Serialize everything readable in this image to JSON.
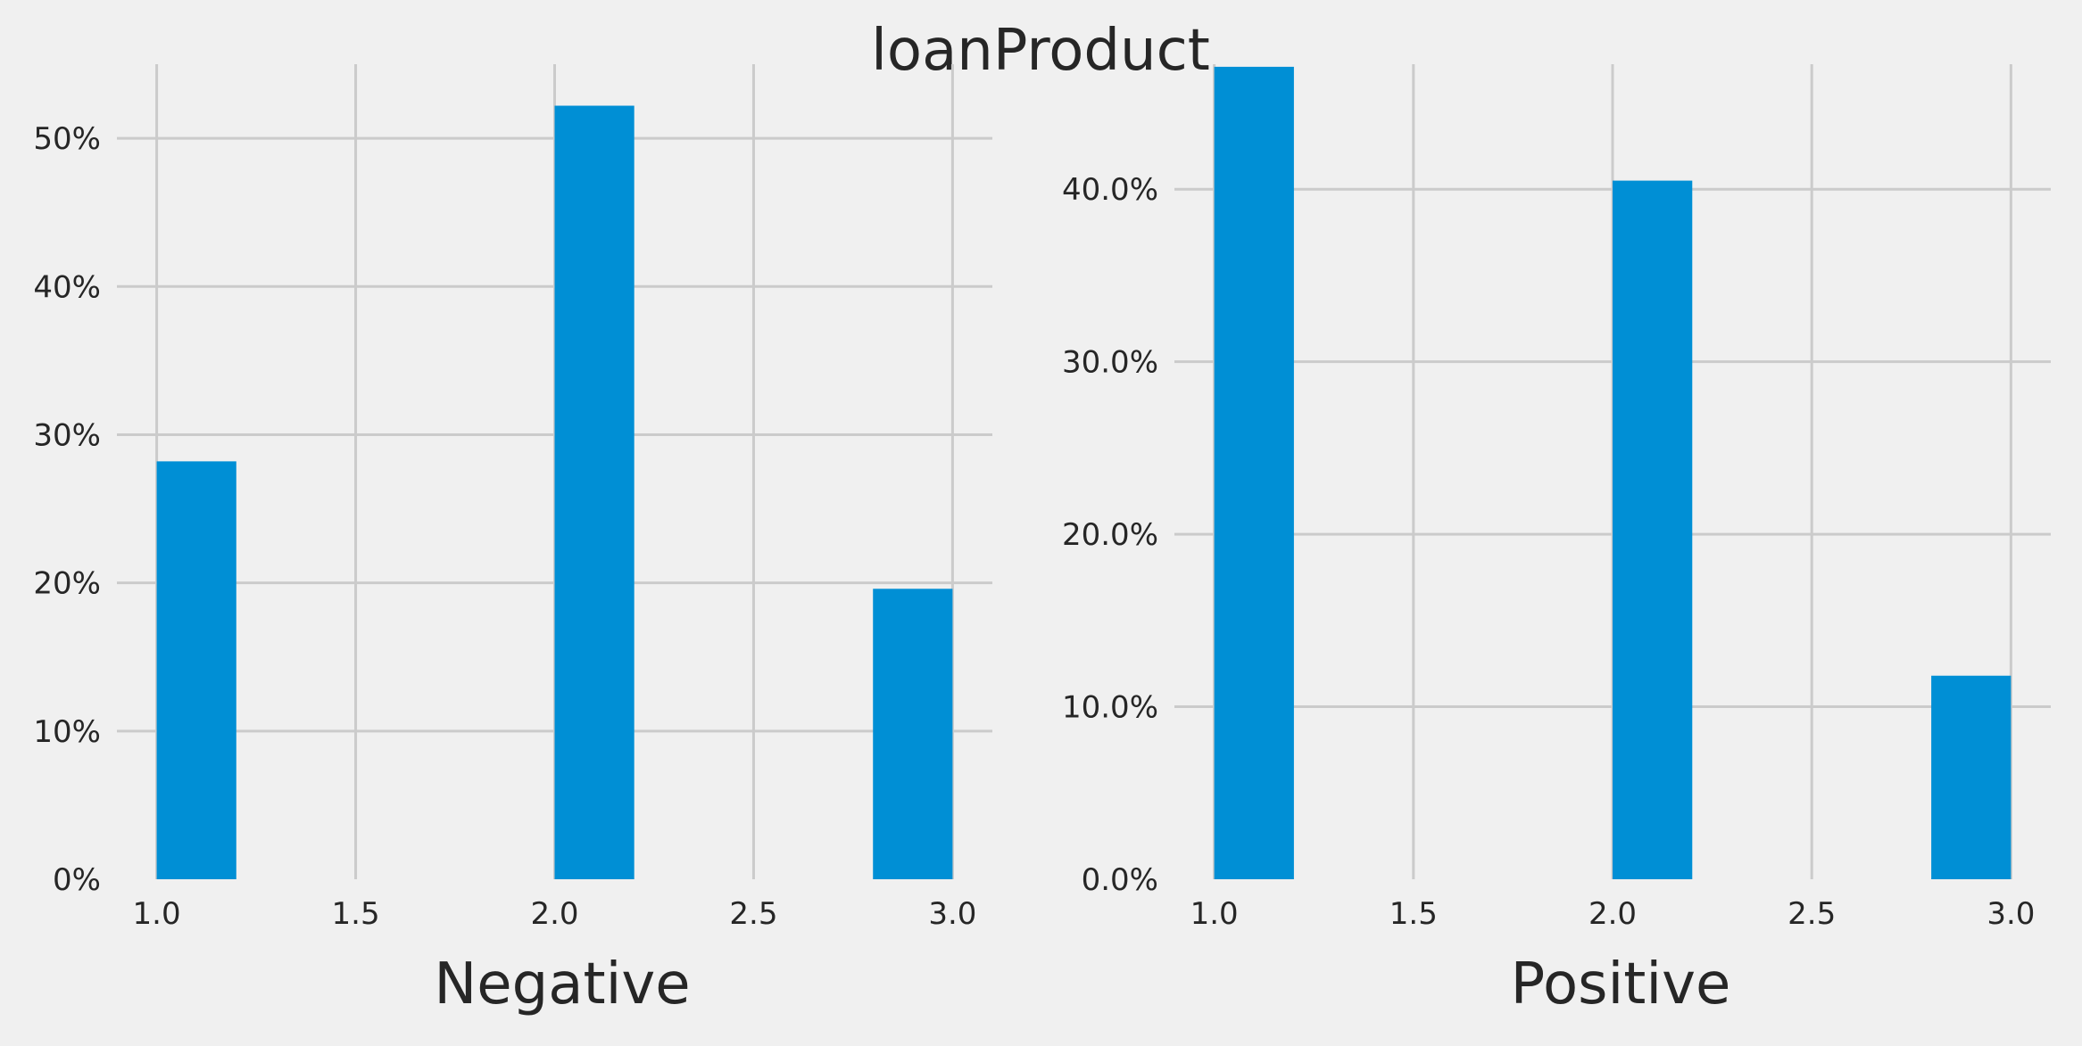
{
  "figure_title": "loanProduct",
  "colors": {
    "bar": "#008fd5",
    "background": "#f0f0f0",
    "grid": "#cbcbcb",
    "text": "#262626"
  },
  "chart_data": [
    {
      "type": "bar",
      "title": "",
      "xlabel": "Negative",
      "ylabel": "",
      "xlim": [
        0.9,
        3.1
      ],
      "ylim": [
        0,
        0.55
      ],
      "xticks": [
        1.0,
        1.5,
        2.0,
        2.5,
        3.0
      ],
      "xtick_labels": [
        "1.0",
        "1.5",
        "2.0",
        "2.5",
        "3.0"
      ],
      "yticks": [
        0,
        0.1,
        0.2,
        0.3,
        0.4,
        0.5
      ],
      "ytick_labels": [
        "0%",
        "10%",
        "20%",
        "30%",
        "40%",
        "50%"
      ],
      "bin_width": 0.2,
      "bins": [
        {
          "start": 1.0,
          "value": 0.282
        },
        {
          "start": 2.0,
          "value": 0.522
        },
        {
          "start": 2.8,
          "value": 0.196
        }
      ]
    },
    {
      "type": "bar",
      "title": "",
      "xlabel": "Positive",
      "ylabel": "",
      "xlim": [
        0.9,
        3.1
      ],
      "ylim": [
        0,
        0.4725
      ],
      "xticks": [
        1.0,
        1.5,
        2.0,
        2.5,
        3.0
      ],
      "xtick_labels": [
        "1.0",
        "1.5",
        "2.0",
        "2.5",
        "3.0"
      ],
      "yticks": [
        0,
        0.1,
        0.2,
        0.3,
        0.4
      ],
      "ytick_labels": [
        "0.0%",
        "10.0%",
        "20.0%",
        "30.0%",
        "40.0%"
      ],
      "bin_width": 0.2,
      "bins": [
        {
          "start": 1.0,
          "value": 0.471
        },
        {
          "start": 2.0,
          "value": 0.405
        },
        {
          "start": 2.8,
          "value": 0.118
        }
      ]
    }
  ]
}
